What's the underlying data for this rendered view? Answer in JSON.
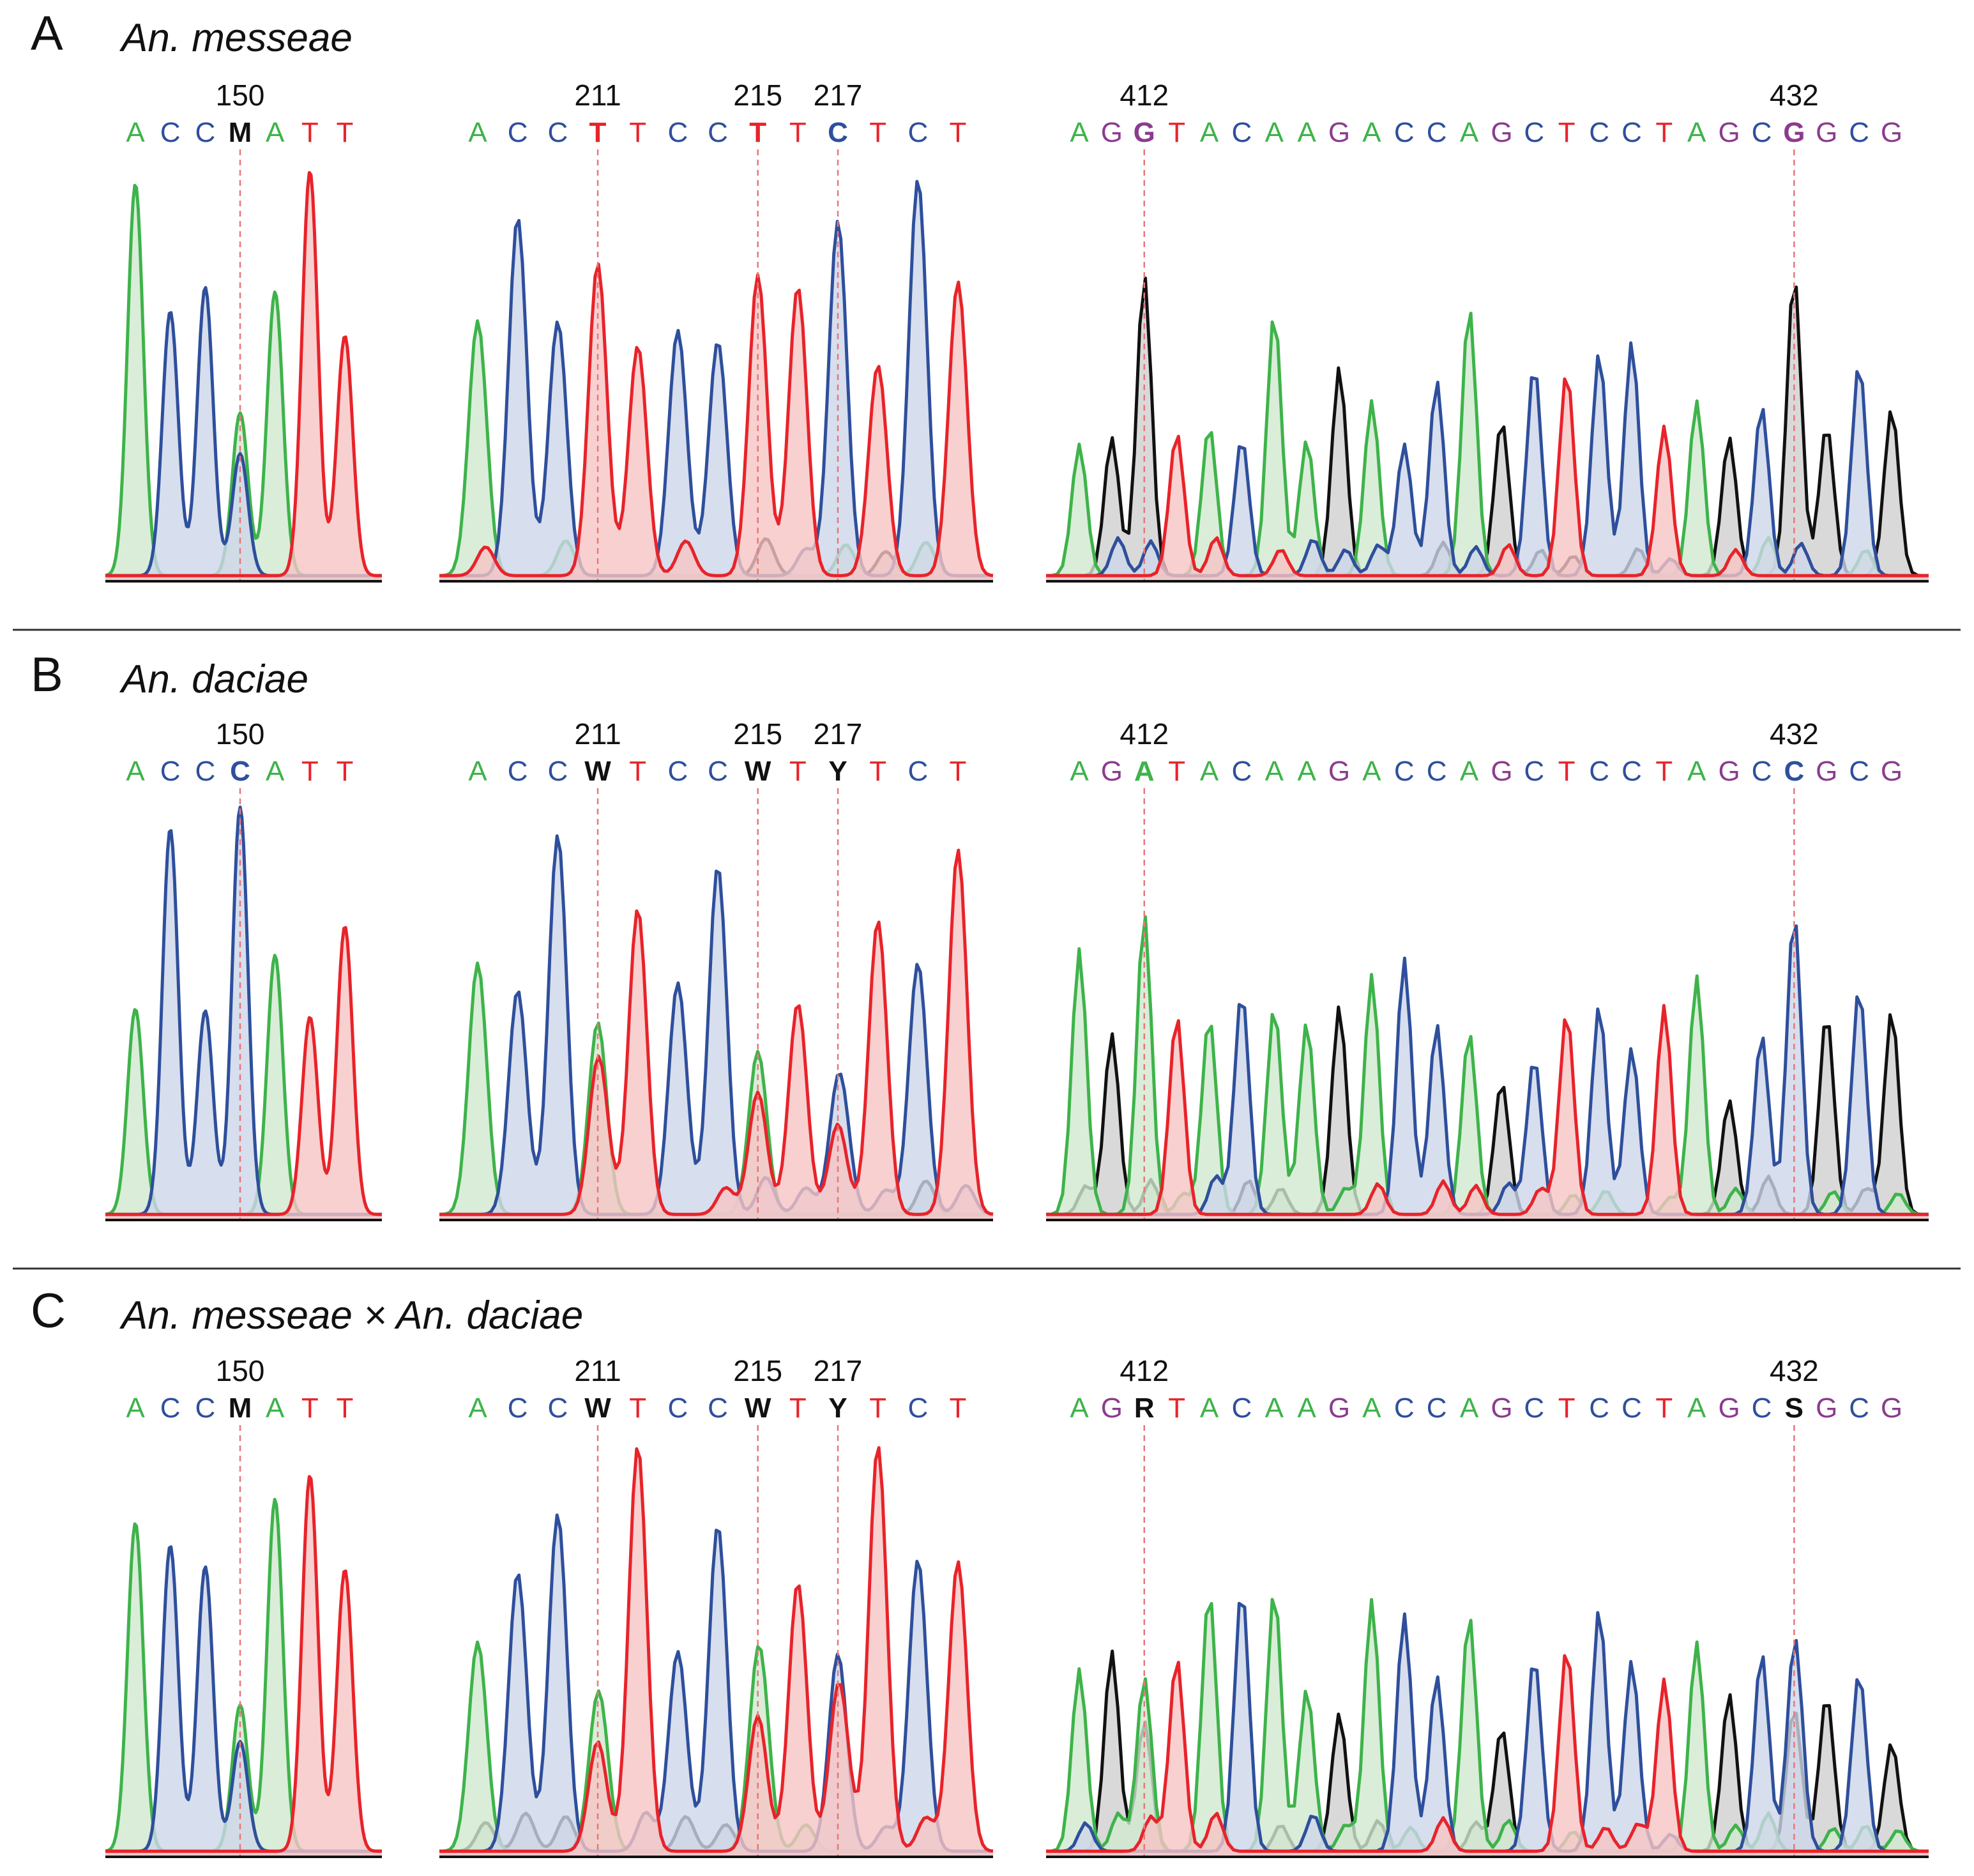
{
  "colors": {
    "A": "#3eb34a",
    "C": "#2e4f9c",
    "G": "#111111",
    "T": "#e8232a",
    "G_label": "#8b3c8e",
    "marker_line": "#e8777a",
    "divider": "#333333",
    "fill_A": "#cfe9cf",
    "fill_C": "#cdd6e8",
    "fill_G": "#cfcfcf",
    "fill_T": "#f6c4c4"
  },
  "panels": [
    {
      "letter": "A",
      "species": "An. messeae",
      "segments": [
        {
          "bases": [
            "A",
            "C",
            "C",
            "M",
            "A",
            "T",
            "T"
          ],
          "highlight": [
            3
          ],
          "markers": [
            {
              "index": 3,
              "pos": "150"
            }
          ]
        },
        {
          "bases": [
            "A",
            "C",
            "C",
            "T",
            "T",
            "C",
            "C",
            "T",
            "T",
            "C",
            "T",
            "C",
            "T"
          ],
          "highlight": [
            3,
            7,
            9
          ],
          "markers": [
            {
              "index": 3,
              "pos": "211"
            },
            {
              "index": 7,
              "pos": "215"
            },
            {
              "index": 9,
              "pos": "217"
            }
          ]
        },
        {
          "bases": [
            "A",
            "G",
            "G",
            "T",
            "A",
            "C",
            "A",
            "A",
            "G",
            "A",
            "C",
            "C",
            "A",
            "G",
            "C",
            "T",
            "C",
            "C",
            "T",
            "A",
            "G",
            "C",
            "G",
            "G",
            "C",
            "G"
          ],
          "highlight": [
            2,
            22
          ],
          "markers": [
            {
              "index": 2,
              "pos": "412"
            },
            {
              "index": 22,
              "pos": "432"
            }
          ]
        }
      ]
    },
    {
      "letter": "B",
      "species": "An. daciae",
      "segments": [
        {
          "bases": [
            "A",
            "C",
            "C",
            "C",
            "A",
            "T",
            "T"
          ],
          "highlight": [
            3
          ],
          "markers": [
            {
              "index": 3,
              "pos": "150"
            }
          ]
        },
        {
          "bases": [
            "A",
            "C",
            "C",
            "W",
            "T",
            "C",
            "C",
            "W",
            "T",
            "Y",
            "T",
            "C",
            "T"
          ],
          "highlight": [
            3,
            7,
            9
          ],
          "markers": [
            {
              "index": 3,
              "pos": "211"
            },
            {
              "index": 7,
              "pos": "215"
            },
            {
              "index": 9,
              "pos": "217"
            }
          ]
        },
        {
          "bases": [
            "A",
            "G",
            "A",
            "T",
            "A",
            "C",
            "A",
            "A",
            "G",
            "A",
            "C",
            "C",
            "A",
            "G",
            "C",
            "T",
            "C",
            "C",
            "T",
            "A",
            "G",
            "C",
            "C",
            "G",
            "C",
            "G"
          ],
          "highlight": [
            2,
            22
          ],
          "markers": [
            {
              "index": 2,
              "pos": "412"
            },
            {
              "index": 22,
              "pos": "432"
            }
          ]
        }
      ]
    },
    {
      "letter": "C",
      "species": "An. messeae × An. daciae",
      "segments": [
        {
          "bases": [
            "A",
            "C",
            "C",
            "M",
            "A",
            "T",
            "T"
          ],
          "highlight": [
            3
          ],
          "markers": [
            {
              "index": 3,
              "pos": "150"
            }
          ]
        },
        {
          "bases": [
            "A",
            "C",
            "C",
            "W",
            "T",
            "C",
            "C",
            "W",
            "T",
            "Y",
            "T",
            "C",
            "T"
          ],
          "highlight": [
            3,
            7,
            9
          ],
          "markers": [
            {
              "index": 3,
              "pos": "211"
            },
            {
              "index": 7,
              "pos": "215"
            },
            {
              "index": 9,
              "pos": "217"
            }
          ]
        },
        {
          "bases": [
            "A",
            "G",
            "R",
            "T",
            "A",
            "C",
            "A",
            "A",
            "G",
            "A",
            "C",
            "C",
            "A",
            "G",
            "C",
            "T",
            "C",
            "C",
            "T",
            "A",
            "G",
            "C",
            "S",
            "G",
            "C",
            "G"
          ],
          "highlight": [
            2,
            22
          ],
          "markers": [
            {
              "index": 2,
              "pos": "412"
            },
            {
              "index": 22,
              "pos": "432"
            }
          ]
        }
      ]
    }
  ]
}
